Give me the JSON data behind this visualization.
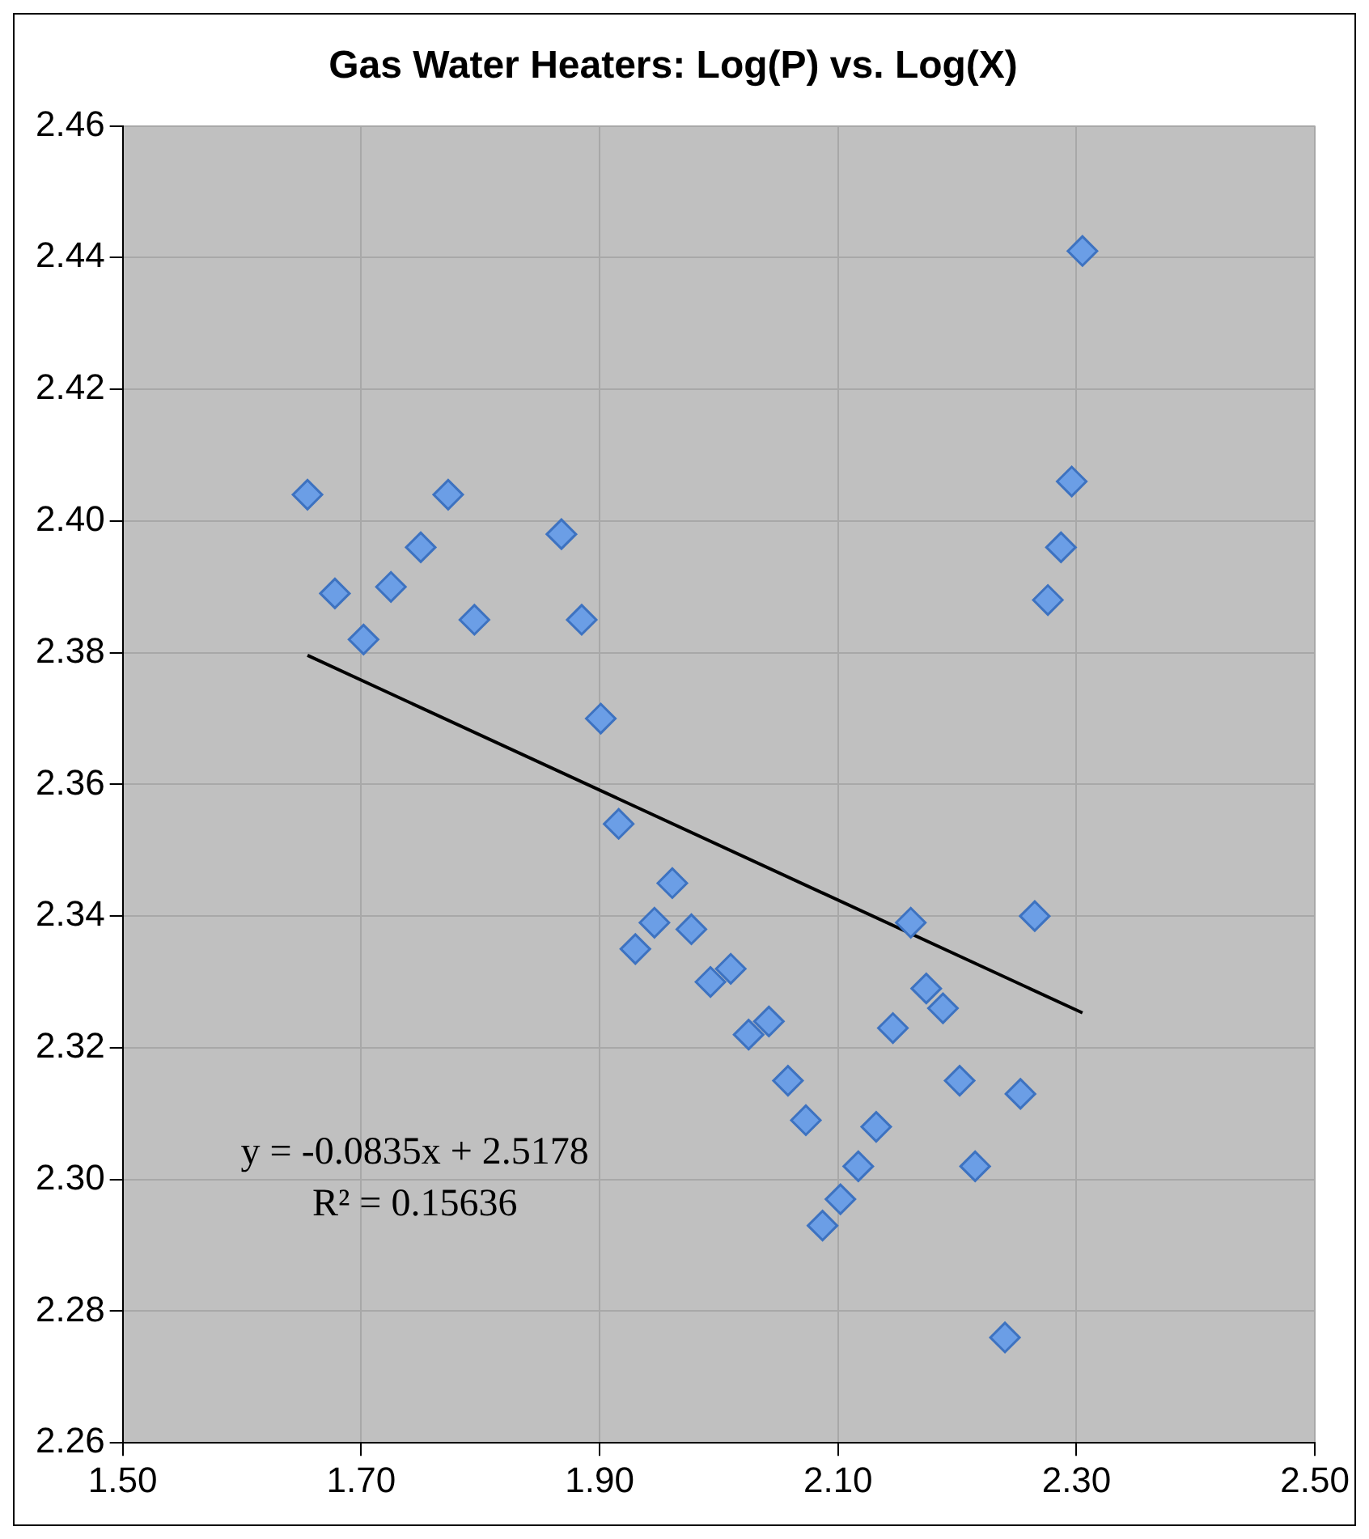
{
  "chart_data": {
    "type": "scatter",
    "title": "Gas Water Heaters: Log(P) vs. Log(X)",
    "series": [
      {
        "color": "#6b9ee6",
        "marker": "diamond",
        "x": [
          1.655,
          1.773,
          1.75,
          1.868,
          1.678,
          1.725,
          1.702,
          1.795,
          1.885,
          1.901,
          2.305,
          2.296,
          2.287,
          2.276,
          1.916,
          1.961,
          1.946,
          1.93,
          1.977,
          1.993,
          2.01,
          2.025,
          2.042,
          2.058,
          2.073,
          2.132,
          2.117,
          2.102,
          2.087,
          2.161,
          2.174,
          2.188,
          2.146,
          2.202,
          2.253,
          2.215,
          2.265,
          2.24
        ],
        "values": [
          2.404,
          2.404,
          2.396,
          2.398,
          2.389,
          2.39,
          2.382,
          2.385,
          2.385,
          2.37,
          2.441,
          2.406,
          2.396,
          2.388,
          2.354,
          2.345,
          2.339,
          2.335,
          2.338,
          2.33,
          2.332,
          2.322,
          2.324,
          2.315,
          2.309,
          2.308,
          2.302,
          2.297,
          2.293,
          2.339,
          2.329,
          2.326,
          2.323,
          2.315,
          2.313,
          2.302,
          2.34,
          2.276
        ]
      },
      {
        "type": "line",
        "color": "#000000",
        "marker": "none",
        "line_style": "solid",
        "x": [
          1.655,
          2.305
        ],
        "values": [
          2.3796,
          2.3253
        ]
      }
    ],
    "xlim": [
      1.5,
      2.5
    ],
    "xticks": [
      {
        "value": 1.5,
        "label": "1.50"
      },
      {
        "value": 1.7,
        "label": "1.70"
      },
      {
        "value": 1.9,
        "label": "1.90"
      },
      {
        "value": 2.1,
        "label": "2.10"
      },
      {
        "value": 2.3,
        "label": "2.30"
      },
      {
        "value": 2.5,
        "label": "2.50"
      }
    ],
    "ylim": [
      2.26,
      2.46
    ],
    "yticks": [
      2.26,
      2.28,
      {
        "value": 2.3,
        "label": "2.30"
      },
      2.32,
      2.34,
      2.36,
      2.38,
      {
        "value": 2.4,
        "label": "2.40"
      },
      2.42,
      2.44,
      2.46
    ],
    "grid": true,
    "annotations": [
      "y = -0.0835x + 2.5178",
      "R² = 0.15636"
    ]
  }
}
